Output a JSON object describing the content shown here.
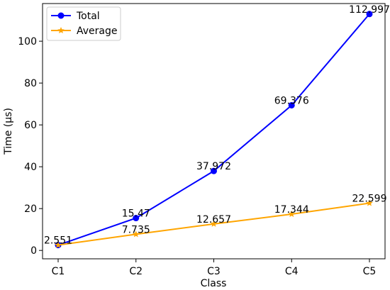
{
  "chart_data": {
    "type": "line",
    "title": "",
    "xlabel": "Class",
    "ylabel": "Time (µs)",
    "categories": [
      "C1",
      "C2",
      "C3",
      "C4",
      "C5"
    ],
    "ylim": [
      -4.0,
      118.0
    ],
    "yticks": [
      0,
      20,
      40,
      60,
      80,
      100
    ],
    "grid": false,
    "legend_position": "top-left",
    "series": [
      {
        "name": "Total",
        "values": [
          2.551,
          15.47,
          37.972,
          69.376,
          112.997
        ],
        "labels": [
          "2.551",
          "15.47",
          "37.972",
          "69.376",
          "112.997"
        ],
        "color": "#0000ff",
        "marker": "circle"
      },
      {
        "name": "Average",
        "values": [
          2.551,
          7.735,
          12.657,
          17.344,
          22.599
        ],
        "labels": [
          "",
          "7.735",
          "12.657",
          "17.344",
          "22.599"
        ],
        "color": "#ffa500",
        "marker": "star"
      }
    ]
  }
}
